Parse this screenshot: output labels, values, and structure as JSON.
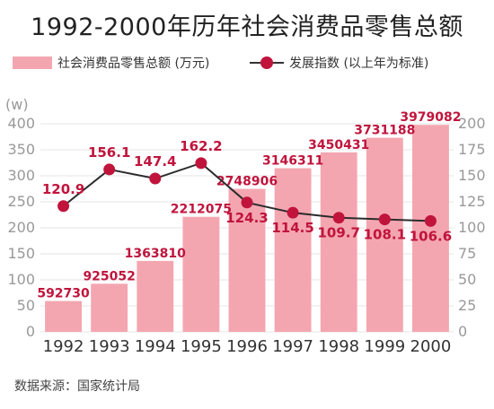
{
  "title": "1992-2000年历年社会消费品零售总额",
  "source": "数据来源：国家统计局",
  "colors": {
    "bar": "#f4a6b0",
    "line": "#2b2b2b",
    "marker": "#c0143c",
    "label": "#c0143c",
    "axis_text": "#999999",
    "grid": "#e6e6e6"
  },
  "chart_data": {
    "type": "bar",
    "categories": [
      "1992",
      "1993",
      "1994",
      "1995",
      "1996",
      "1997",
      "1998",
      "1999",
      "2000"
    ],
    "series": [
      {
        "name": "社会消费品零售总额 (万元)",
        "type": "bar",
        "axis": "left",
        "values": [
          592730,
          925052,
          1363810,
          2212075,
          2748906,
          3146311,
          3450431,
          3731188,
          3979082
        ],
        "labels": [
          "592730",
          "925052",
          "1363810",
          "2212075",
          "2748906",
          "3146311",
          "3450431",
          "3731188",
          "3979082"
        ]
      },
      {
        "name": "发展指数 (以上年为标准)",
        "type": "line",
        "axis": "right",
        "values": [
          120.9,
          156.1,
          147.4,
          162.2,
          124.3,
          114.5,
          109.7,
          108.1,
          106.6
        ],
        "labels": [
          "120.9",
          "156.1",
          "147.4",
          "162.2",
          "124.3",
          "114.5",
          "109.7",
          "108.1",
          "106.6"
        ]
      }
    ],
    "y_left": {
      "unit": "(w)",
      "ylim": [
        0,
        400
      ],
      "ticks": [
        "0",
        "50",
        "100",
        "150",
        "200",
        "250",
        "300",
        "350",
        "400"
      ]
    },
    "y_right": {
      "ylim": [
        0,
        200
      ],
      "ticks": [
        "0",
        "25",
        "50",
        "75",
        "100",
        "125",
        "150",
        "175",
        "200"
      ]
    },
    "grid": true,
    "legend": "top"
  }
}
